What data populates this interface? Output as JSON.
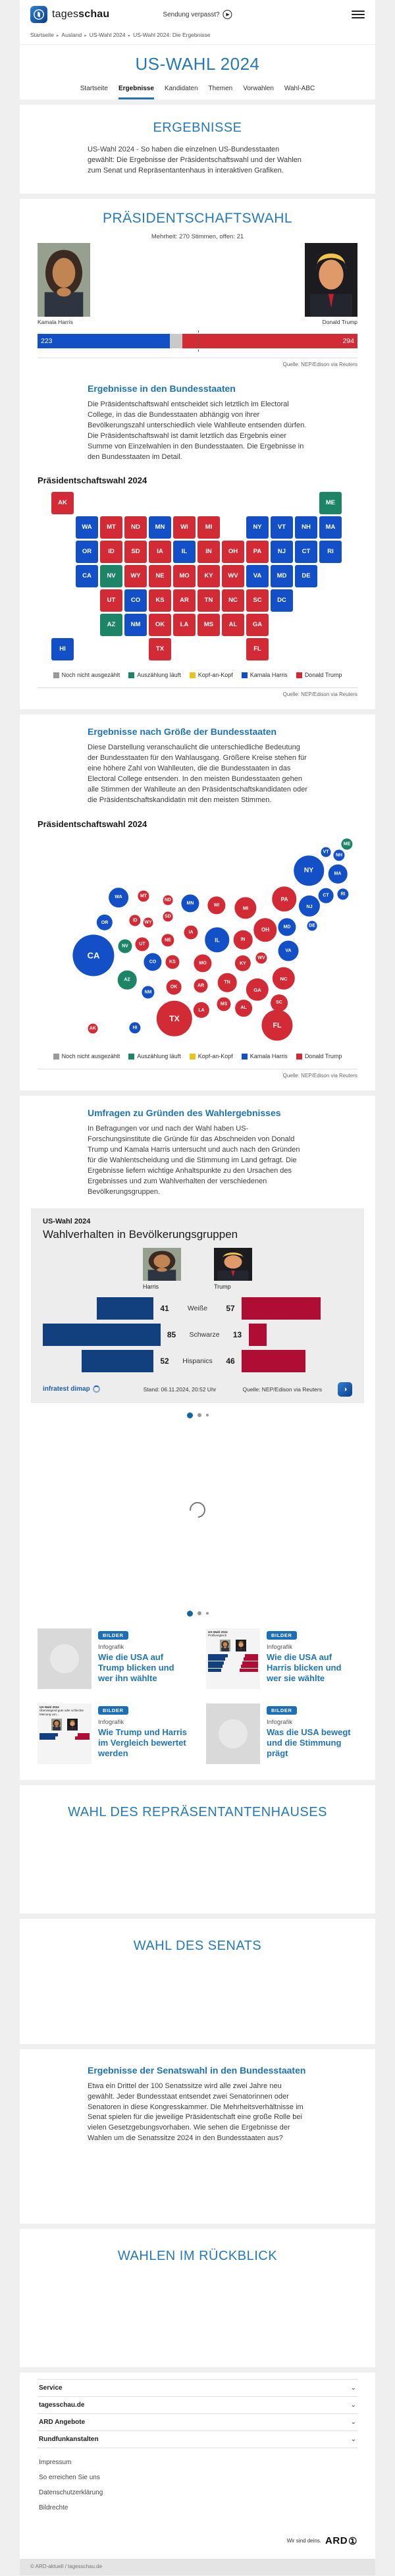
{
  "header": {
    "brand_regular": "tages",
    "brand_bold": "schau",
    "sendung_label": "Sendung verpasst?",
    "breadcrumb": [
      "Startseite",
      "Ausland",
      "US-Wahl 2024",
      "US-Wahl 2024: Die Ergebnisse"
    ]
  },
  "page": {
    "title": "US-WAHL 2024"
  },
  "tabs": [
    {
      "label": "Startseite",
      "active": false
    },
    {
      "label": "Ergebnisse",
      "active": true
    },
    {
      "label": "Kandidaten",
      "active": false
    },
    {
      "label": "Themen",
      "active": false
    },
    {
      "label": "Vorwahlen",
      "active": false
    },
    {
      "label": "Wahl-ABC",
      "active": false
    }
  ],
  "colors": {
    "harris": "#1350c8",
    "trump": "#d32b35",
    "counting": "#1d8566",
    "tossup": "#e8c51d",
    "open": "#c9c9c9",
    "demo_harris": "#123f7e",
    "demo_trump": "#b00d35"
  },
  "intro": {
    "heading": "ERGEBNISSE",
    "text": "US-Wahl 2024 - So haben die einzelnen US-Bundesstaaten gewählt: Die Ergebnisse der Präsidentschaftswahl und der Wahlen zum Senat und Repräsentantenhaus in interaktiven Grafiken."
  },
  "praesidentschaftswahl": {
    "heading": "PRÄSIDENTSCHAFTSWAHL",
    "majority_note": "Mehrheit: 270 Stimmen, offen: 21",
    "source": "Quelle: NEP/Edison via Reuters",
    "bundesstaaten_heading": "Ergebnisse in den Bundesstaaten",
    "bundesstaaten_text": "Die Präsidentschaftswahl entscheidet sich letztlich im Electoral College, in das die Bundesstaaten abhängig von ihrer Bevölkerungszahl unterschiedlich viele Wahlleute entsenden dürfen. Die Präsidentschaftswahl ist damit letztlich das Ergebnis einer Summe von Einzelwahlen in den Bundesstaaten. Die Ergebnisse in den Bundesstaaten im Detail.",
    "map_title": "Präsidentschaftswahl 2024"
  },
  "groesse": {
    "heading": "Ergebnisse nach Größe der Bundesstaaten",
    "text": "Diese Darstellung veranschaulicht die unterschiedliche Bedeutung der Bundesstaaten für den Wahlausgang. Größere Kreise stehen für eine höhere Zahl von Wahlleuten, die die Bundesstaaten in das Electoral College entsenden. In den meisten Bundesstaaten gehen alle Stimmen der Wahlleute an den Präsidentschaftskandidaten oder die Präsidentschaftskandidatin mit den meisten Stimmen.",
    "map_title": "Präsidentschaftswahl 2024",
    "source": "Quelle: NEP/Edison via Reuters"
  },
  "umfragen": {
    "heading": "Umfragen zu Gründen des Wahlergebnisses",
    "text": "In Befragungen vor und nach der Wahl haben US-Forschungsinstitute die Gründe für das Abschneiden von Donald Trump und Kamala Harris untersucht und auch nach den Gründen für die Wahlentscheidung und die Stimmung im Land gefragt. Die Ergebnisse liefern wichtige Anhaltspunkte zu den Ursachen des Ergebnisses und zum Wahlverhalten der verschiedenen Bevölkerungsgruppen."
  },
  "teasers": [
    {
      "badge": "BILDER",
      "kicker": "Infografik",
      "title": "Wie die USA auf Trump blicken und wer ihn wählte",
      "thumb": "placeholder"
    },
    {
      "badge": "BILDER",
      "kicker": "Infografik",
      "title": "Wie die USA auf Harris blicken und wer sie wählte",
      "thumb": "chart-a",
      "thumb_lines": [
        "US-Wahl 2024",
        "Profilvergleich"
      ]
    },
    {
      "badge": "BILDER",
      "kicker": "Infografik",
      "title": "Wie Trump und Harris im Vergleich bewertet werden",
      "thumb": "chart-b",
      "thumb_lines": [
        "US-Wahl 2024",
        "Überwiegend gute oder schlechte",
        "Meinung von..."
      ]
    },
    {
      "badge": "BILDER",
      "kicker": "Infografik",
      "title": "Was die USA bewegt und die Stimmung prägt",
      "thumb": "placeholder"
    }
  ],
  "sections": {
    "repraesentantenhaus": "WAHL DES REPRÄSENTANTENHAUSES",
    "senat": "WAHL DES SENATS",
    "senatswahl_heading": "Ergebnisse der Senatswahl in den Bundesstaaten",
    "senatswahl_text": "Etwa ein Drittel der 100 Senatssitze wird alle zwei Jahre neu gewählt. Jeder Bundesstaat entsendet zwei Senatorinnen oder Senatoren in diese Kongresskammer. Die Mehrheitsverhältnisse im Senat spielen für die jeweilige Präsidentschaft eine große Rolle bei vielen Gesetzgebungsvorhaben. Wie sehen die Ergebnisse der Wahlen um die Senatssitze 2024 in den Bundesstaaten aus?",
    "rueckblick": "WAHLEN IM RÜCKBLICK"
  },
  "footer": {
    "accordions": [
      "Service",
      "tagesschau.de",
      "ARD Angebote",
      "Rundfunkanstalten"
    ],
    "links": [
      "Impressum",
      "So erreichen Sie uns",
      "Datenschutzerklärung",
      "Bildrechte"
    ],
    "ard_claim": "Wir sind deins.",
    "ard_label": "ARD",
    "copyright": "© ARD-aktuell / tagesschau.de"
  },
  "chart_data": [
    {
      "type": "bar",
      "title": "Präsidentschaftswahl",
      "categories": [
        "Kamala Harris",
        "offen",
        "Donald Trump"
      ],
      "values": [
        223,
        21,
        294
      ],
      "total": 538,
      "majority": 270,
      "note": "Mehrheit: 270 Stimmen, offen: 21",
      "source": "Quelle: NEP/Edison via Reuters",
      "harris_name": "Kamala Harris",
      "trump_name": "Donald Trump",
      "harris_votes": 223,
      "trump_votes": 294
    },
    {
      "type": "map",
      "title": "Präsidentschaftswahl 2024",
      "legend": [
        {
          "label": "Noch nicht ausgezählt",
          "color": "#9a9a9a"
        },
        {
          "label": "Auszählung läuft",
          "color": "#1d8566"
        },
        {
          "label": "Kopf-an-Kopf",
          "color": "#e8c51d"
        },
        {
          "label": "Kamala Harris",
          "color": "#1350c8"
        },
        {
          "label": "Donald Trump",
          "color": "#d32b35"
        }
      ],
      "party_key": {
        "harris": "#1350c8",
        "trump": "#d32b35",
        "counting": "#1d8566"
      },
      "states": [
        {
          "code": "AK",
          "party": "trump",
          "ev": 3,
          "row": 0,
          "col": 0,
          "bx": 84,
          "by": 295
        },
        {
          "code": "ME",
          "party": "counting",
          "ev": 4,
          "row": 0,
          "col": 11,
          "bx": 470,
          "by": 15
        },
        {
          "code": "WA",
          "party": "harris",
          "ev": 12,
          "row": 1,
          "col": 1,
          "bx": 123,
          "by": 96
        },
        {
          "code": "MT",
          "party": "trump",
          "ev": 4,
          "row": 1,
          "col": 2,
          "bx": 161,
          "by": 94
        },
        {
          "code": "ND",
          "party": "trump",
          "ev": 3,
          "row": 1,
          "col": 3,
          "bx": 198,
          "by": 100
        },
        {
          "code": "MN",
          "party": "harris",
          "ev": 10,
          "row": 1,
          "col": 4,
          "bx": 232,
          "by": 105
        },
        {
          "code": "WI",
          "party": "trump",
          "ev": 10,
          "row": 1,
          "col": 5,
          "bx": 272,
          "by": 108
        },
        {
          "code": "MI",
          "party": "trump",
          "ev": 15,
          "row": 1,
          "col": 6,
          "bx": 316,
          "by": 112
        },
        {
          "code": "NY",
          "party": "harris",
          "ev": 28,
          "row": 1,
          "col": 8,
          "bx": 412,
          "by": 55
        },
        {
          "code": "VT",
          "party": "harris",
          "ev": 3,
          "row": 1,
          "col": 9,
          "bx": 438,
          "by": 27
        },
        {
          "code": "NH",
          "party": "harris",
          "ev": 4,
          "row": 1,
          "col": 10,
          "bx": 458,
          "by": 32
        },
        {
          "code": "MA",
          "party": "harris",
          "ev": 11,
          "row": 1,
          "col": 11,
          "bx": 456,
          "by": 60
        },
        {
          "code": "OR",
          "party": "harris",
          "ev": 8,
          "row": 2,
          "col": 1,
          "bx": 102,
          "by": 134
        },
        {
          "code": "ID",
          "party": "trump",
          "ev": 4,
          "row": 2,
          "col": 2,
          "bx": 148,
          "by": 131
        },
        {
          "code": "SD",
          "party": "trump",
          "ev": 3,
          "row": 2,
          "col": 3,
          "bx": 198,
          "by": 125
        },
        {
          "code": "IA",
          "party": "trump",
          "ev": 6,
          "row": 2,
          "col": 4,
          "bx": 233,
          "by": 149
        },
        {
          "code": "IL",
          "party": "harris",
          "ev": 19,
          "row": 2,
          "col": 5,
          "bx": 273,
          "by": 160
        },
        {
          "code": "IN",
          "party": "trump",
          "ev": 11,
          "row": 2,
          "col": 6,
          "bx": 312,
          "by": 160
        },
        {
          "code": "OH",
          "party": "trump",
          "ev": 17,
          "row": 2,
          "col": 7,
          "bx": 346,
          "by": 145
        },
        {
          "code": "PA",
          "party": "trump",
          "ev": 19,
          "row": 2,
          "col": 8,
          "bx": 375,
          "by": 98
        },
        {
          "code": "NJ",
          "party": "harris",
          "ev": 14,
          "row": 2,
          "col": 9,
          "bx": 413,
          "by": 109
        },
        {
          "code": "CT",
          "party": "harris",
          "ev": 7,
          "row": 2,
          "col": 10,
          "bx": 438,
          "by": 93
        },
        {
          "code": "RI",
          "party": "harris",
          "ev": 4,
          "row": 2,
          "col": 11,
          "bx": 464,
          "by": 91
        },
        {
          "code": "CA",
          "party": "harris",
          "ev": 54,
          "row": 3,
          "col": 1,
          "bx": 85,
          "by": 184
        },
        {
          "code": "NV",
          "party": "counting",
          "ev": 6,
          "row": 3,
          "col": 2,
          "bx": 133,
          "by": 170
        },
        {
          "code": "WY",
          "party": "trump",
          "ev": 3,
          "row": 3,
          "col": 3,
          "bx": 168,
          "by": 134
        },
        {
          "code": "NE",
          "party": "trump",
          "ev": 5,
          "row": 3,
          "col": 4,
          "bx": 198,
          "by": 161
        },
        {
          "code": "MO",
          "party": "trump",
          "ev": 10,
          "row": 3,
          "col": 5,
          "bx": 251,
          "by": 196
        },
        {
          "code": "KY",
          "party": "trump",
          "ev": 8,
          "row": 3,
          "col": 6,
          "bx": 312,
          "by": 196
        },
        {
          "code": "WV",
          "party": "trump",
          "ev": 4,
          "row": 3,
          "col": 7,
          "bx": 340,
          "by": 188
        },
        {
          "code": "VA",
          "party": "harris",
          "ev": 13,
          "row": 3,
          "col": 8,
          "bx": 381,
          "by": 177
        },
        {
          "code": "MD",
          "party": "harris",
          "ev": 10,
          "row": 3,
          "col": 9,
          "bx": 379,
          "by": 141
        },
        {
          "code": "DE",
          "party": "harris",
          "ev": 3,
          "row": 3,
          "col": 10,
          "bx": 417,
          "by": 139
        },
        {
          "code": "UT",
          "party": "trump",
          "ev": 6,
          "row": 4,
          "col": 2,
          "bx": 159,
          "by": 167
        },
        {
          "code": "CO",
          "party": "harris",
          "ev": 10,
          "row": 4,
          "col": 3,
          "bx": 175,
          "by": 194
        },
        {
          "code": "KS",
          "party": "trump",
          "ev": 6,
          "row": 4,
          "col": 4,
          "bx": 205,
          "by": 194
        },
        {
          "code": "AR",
          "party": "trump",
          "ev": 6,
          "row": 4,
          "col": 5,
          "bx": 248,
          "by": 230
        },
        {
          "code": "TN",
          "party": "trump",
          "ev": 11,
          "row": 4,
          "col": 6,
          "bx": 288,
          "by": 225
        },
        {
          "code": "NC",
          "party": "trump",
          "ev": 16,
          "row": 4,
          "col": 7,
          "bx": 374,
          "by": 219
        },
        {
          "code": "SC",
          "party": "trump",
          "ev": 9,
          "row": 4,
          "col": 8,
          "bx": 367,
          "by": 256
        },
        {
          "code": "DC",
          "party": "harris",
          "ev": 3,
          "row": 4,
          "col": 9,
          "bx": 398,
          "by": 158
        },
        {
          "code": "AZ",
          "party": "counting",
          "ev": 11,
          "row": 5,
          "col": 2,
          "bx": 136,
          "by": 221
        },
        {
          "code": "NM",
          "party": "harris",
          "ev": 5,
          "row": 5,
          "col": 3,
          "bx": 168,
          "by": 240
        },
        {
          "code": "OK",
          "party": "trump",
          "ev": 7,
          "row": 5,
          "col": 4,
          "bx": 207,
          "by": 232
        },
        {
          "code": "LA",
          "party": "trump",
          "ev": 8,
          "row": 5,
          "col": 5,
          "bx": 249,
          "by": 267
        },
        {
          "code": "MS",
          "party": "trump",
          "ev": 6,
          "row": 5,
          "col": 6,
          "bx": 283,
          "by": 258
        },
        {
          "code": "AL",
          "party": "trump",
          "ev": 9,
          "row": 5,
          "col": 7,
          "bx": 313,
          "by": 264
        },
        {
          "code": "GA",
          "party": "trump",
          "ev": 16,
          "row": 5,
          "col": 8,
          "bx": 334,
          "by": 236
        },
        {
          "code": "HI",
          "party": "harris",
          "ev": 4,
          "row": 6,
          "col": 0,
          "bx": 148,
          "by": 294
        },
        {
          "code": "TX",
          "party": "trump",
          "ev": 40,
          "row": 6,
          "col": 4,
          "bx": 208,
          "by": 280
        },
        {
          "code": "FL",
          "party": "trump",
          "ev": 30,
          "row": 6,
          "col": 8,
          "bx": 364,
          "by": 290
        }
      ],
      "source": "Quelle: NEP/Edison via Reuters"
    },
    {
      "type": "bar",
      "kicker": "US-Wahl 2024",
      "title": "Wahlverhalten in Bevölkerungsgruppen",
      "categories": [
        "Weiße",
        "Schwarze",
        "Hispanics"
      ],
      "series": [
        {
          "name": "Harris",
          "values": [
            41,
            85,
            52
          ]
        },
        {
          "name": "Trump",
          "values": [
            57,
            13,
            46
          ]
        }
      ],
      "infratest": "infratest dimap",
      "stand": "Stand:  06.11.2024, 20:52 Uhr",
      "quelle": "Quelle: NEP/Edison via Reuters"
    }
  ],
  "carousel": {
    "dots": [
      "active",
      "inactive",
      "small"
    ]
  }
}
